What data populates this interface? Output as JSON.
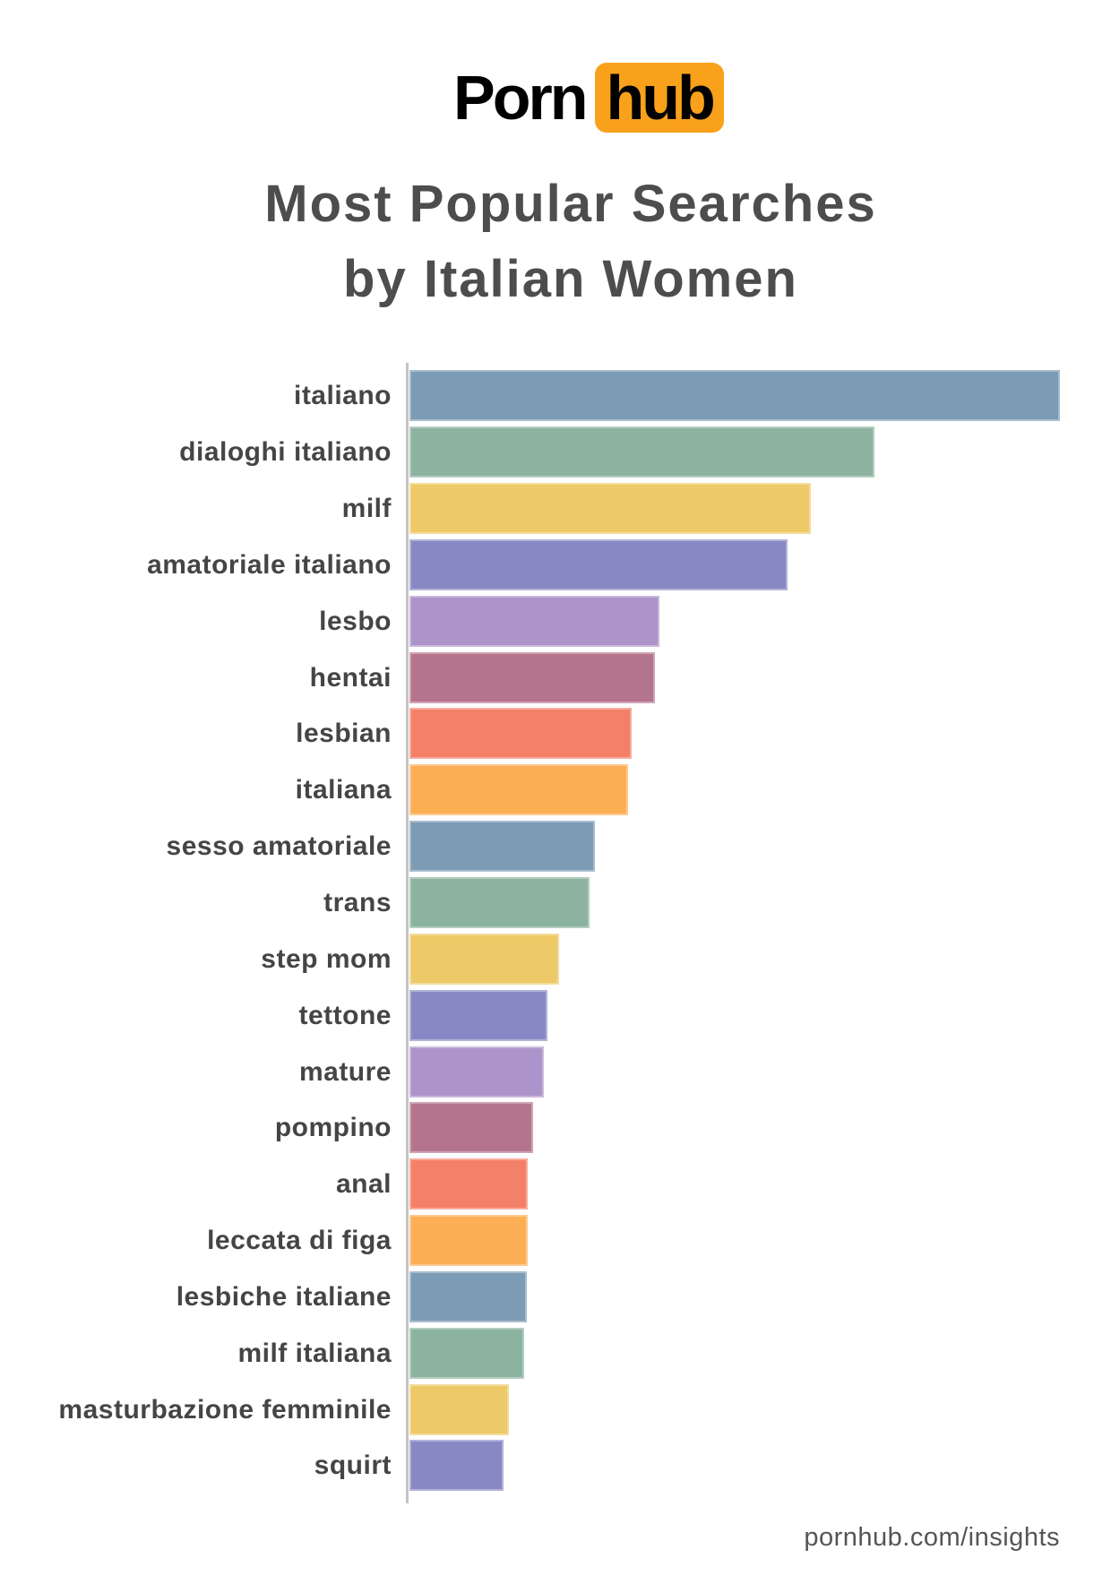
{
  "logo": {
    "part1": "Porn",
    "part2": "hub",
    "badge_color": "#F9A11B",
    "text_color": "#000000"
  },
  "title": {
    "line1": "Most Popular Searches",
    "line2": "by Italian Women",
    "color": "#4D4D4D"
  },
  "footer": {
    "text": "pornhub.com/insights",
    "color": "#555557"
  },
  "chart_data": {
    "type": "bar",
    "orientation": "horizontal",
    "title": "Most Popular Searches by Italian Women",
    "xlabel": "",
    "ylabel": "",
    "value_unit": "relative search volume (top search = 100)",
    "xlim": [
      0,
      100
    ],
    "grid": false,
    "legend": false,
    "axis_color": "#C4C4C4",
    "categories": [
      "italiano",
      "dialoghi italiano",
      "milf",
      "amatoriale italiano",
      "lesbo",
      "hentai",
      "lesbian",
      "italiana",
      "sesso amatoriale",
      "trans",
      "step mom",
      "tettone",
      "mature",
      "pompino",
      "anal",
      "leccata di figa",
      "lesbiche italiane",
      "milf italiana",
      "masturbazione femminile",
      "squirt"
    ],
    "values": [
      100,
      71.5,
      61.7,
      58.1,
      38.4,
      37.7,
      34.2,
      33.6,
      28.5,
      27.7,
      23.0,
      21.2,
      20.7,
      19.0,
      18.2,
      18.2,
      18.0,
      17.6,
      15.3,
      14.5
    ],
    "palette_cycle": [
      "#7C9BB4",
      "#8BB39F",
      "#EDC967",
      "#8889C4",
      "#AC93C9",
      "#B5748E",
      "#F4806A",
      "#FCAE55"
    ],
    "bar_colors": [
      "#7C9BB4",
      "#8BB39F",
      "#EDC967",
      "#8889C4",
      "#AC93C9",
      "#B5748E",
      "#F4806A",
      "#FCAE55",
      "#7C9BB4",
      "#8BB39F",
      "#EDC967",
      "#8889C4",
      "#AC93C9",
      "#B5748E",
      "#F4806A",
      "#FCAE55",
      "#7C9BB4",
      "#8BB39F",
      "#EDC967",
      "#8889C4"
    ]
  }
}
